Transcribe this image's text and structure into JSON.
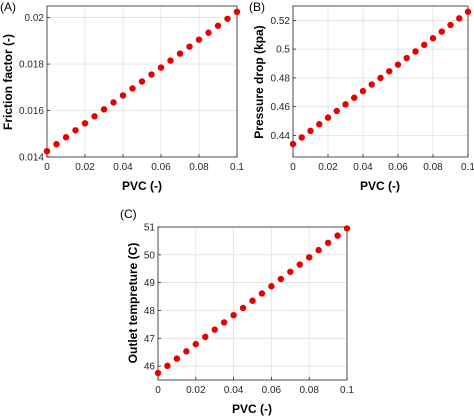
{
  "chart_data": [
    {
      "panel_label": "(A)",
      "type": "scatter",
      "xlabel": "PVC (-)",
      "ylabel": "Friction factor (-)",
      "xlim": [
        0,
        0.1
      ],
      "ylim": [
        0.014,
        0.0205
      ],
      "xticks": [
        0,
        0.02,
        0.04,
        0.06,
        0.08,
        0.1
      ],
      "xtick_labels": [
        "0",
        "0.02",
        "0.04",
        "0.06",
        "0.08",
        "0.1"
      ],
      "yticks": [
        0.014,
        0.016,
        0.018,
        0.02
      ],
      "ytick_labels": [
        "0.014",
        "0.016",
        "0.018",
        "0.02"
      ],
      "grid": true,
      "marker_color": "#e60000",
      "x": [
        0,
        0.005,
        0.01,
        0.015,
        0.02,
        0.025,
        0.03,
        0.035,
        0.04,
        0.045,
        0.05,
        0.055,
        0.06,
        0.065,
        0.07,
        0.075,
        0.08,
        0.085,
        0.09,
        0.095,
        0.1
      ],
      "y": [
        0.01425,
        0.01455,
        0.01485,
        0.01515,
        0.01545,
        0.01575,
        0.01605,
        0.01635,
        0.01665,
        0.01695,
        0.01725,
        0.01755,
        0.01785,
        0.01815,
        0.01845,
        0.01875,
        0.01905,
        0.01935,
        0.01965,
        0.01995,
        0.02025
      ]
    },
    {
      "panel_label": "(B)",
      "type": "scatter",
      "xlabel": "PVC (-)",
      "ylabel": "Pressure drop (kpa)",
      "xlim": [
        0,
        0.1
      ],
      "ylim": [
        0.425,
        0.53
      ],
      "xticks": [
        0,
        0.02,
        0.04,
        0.06,
        0.08,
        0.1
      ],
      "xtick_labels": [
        "0",
        "0.02",
        "0.04",
        "0.06",
        "0.08",
        "0.1"
      ],
      "yticks": [
        0.44,
        0.46,
        0.48,
        0.5,
        0.52
      ],
      "ytick_labels": [
        "0.44",
        "0.46",
        "0.48",
        "0.5",
        "0.52"
      ],
      "grid": true,
      "marker_color": "#e60000",
      "x": [
        0,
        0.005,
        0.01,
        0.015,
        0.02,
        0.025,
        0.03,
        0.035,
        0.04,
        0.045,
        0.05,
        0.055,
        0.06,
        0.065,
        0.07,
        0.075,
        0.08,
        0.085,
        0.09,
        0.095,
        0.1
      ],
      "y": [
        0.434,
        0.4386,
        0.4432,
        0.4478,
        0.4524,
        0.457,
        0.4616,
        0.4662,
        0.4708,
        0.4754,
        0.48,
        0.4846,
        0.4892,
        0.4938,
        0.4984,
        0.503,
        0.5076,
        0.5122,
        0.5168,
        0.5214,
        0.526
      ]
    },
    {
      "panel_label": "(C)",
      "type": "scatter",
      "xlabel": "PVC (-)",
      "ylabel": "Outlet tempreture  (C)",
      "xlim": [
        0,
        0.1
      ],
      "ylim": [
        45.5,
        51
      ],
      "xticks": [
        0,
        0.02,
        0.04,
        0.06,
        0.08,
        0.1
      ],
      "xtick_labels": [
        "0",
        "0.02",
        "0.04",
        "0.06",
        "0.08",
        "0.1"
      ],
      "yticks": [
        46,
        47,
        48,
        49,
        50,
        51
      ],
      "ytick_labels": [
        "46",
        "47",
        "48",
        "49",
        "50",
        "51"
      ],
      "grid": true,
      "marker_color": "#e60000",
      "x": [
        0,
        0.005,
        0.01,
        0.015,
        0.02,
        0.025,
        0.03,
        0.035,
        0.04,
        0.045,
        0.05,
        0.055,
        0.06,
        0.065,
        0.07,
        0.075,
        0.08,
        0.085,
        0.09,
        0.095,
        0.1
      ],
      "y": [
        45.75,
        46.01,
        46.27,
        46.53,
        46.79,
        47.05,
        47.31,
        47.57,
        47.83,
        48.09,
        48.35,
        48.61,
        48.87,
        49.13,
        49.39,
        49.65,
        49.91,
        50.17,
        50.43,
        50.69,
        50.95
      ]
    }
  ]
}
